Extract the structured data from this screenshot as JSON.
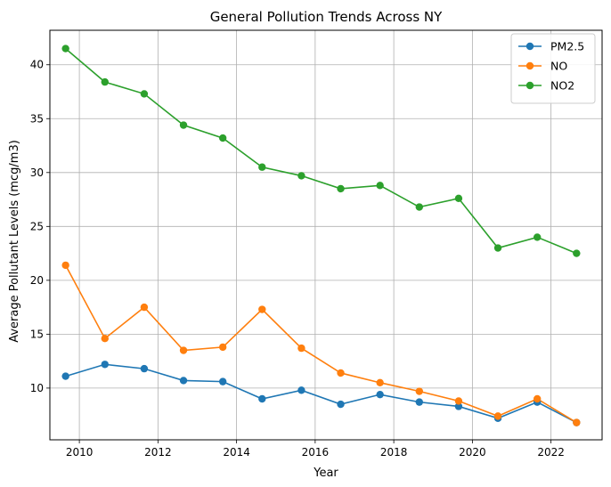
{
  "chart_data": {
    "type": "line",
    "title": "General Pollution Trends Across NY",
    "xlabel": "Year",
    "ylabel": "Average Pollutant Levels (mcg/m3)",
    "xlim": [
      2009.25,
      2023.3
    ],
    "ylim": [
      5.2,
      43.2
    ],
    "xticks": [
      2010,
      2012,
      2014,
      2016,
      2018,
      2020,
      2022
    ],
    "yticks": [
      10,
      15,
      20,
      25,
      30,
      35,
      40
    ],
    "grid": true,
    "legend_position": "top-right",
    "x": [
      2009.65,
      2010.65,
      2011.65,
      2012.65,
      2013.65,
      2014.65,
      2015.65,
      2016.65,
      2017.65,
      2018.65,
      2019.65,
      2020.65,
      2021.65,
      2022.65
    ],
    "series": [
      {
        "name": "PM2.5",
        "color": "#1f77b4",
        "values": [
          11.1,
          12.2,
          11.8,
          10.7,
          10.6,
          9.0,
          9.8,
          8.5,
          9.4,
          8.7,
          8.3,
          7.2,
          8.7,
          6.8
        ]
      },
      {
        "name": "NO",
        "color": "#ff7f0e",
        "values": [
          21.4,
          14.6,
          17.5,
          13.5,
          13.8,
          17.3,
          13.7,
          11.4,
          10.5,
          9.7,
          8.8,
          7.4,
          9.0,
          6.8
        ]
      },
      {
        "name": "NO2",
        "color": "#2ca02c",
        "values": [
          41.5,
          38.4,
          37.3,
          34.4,
          33.2,
          30.5,
          29.7,
          28.5,
          28.8,
          26.8,
          27.6,
          23.0,
          24.0,
          22.5
        ]
      }
    ]
  }
}
